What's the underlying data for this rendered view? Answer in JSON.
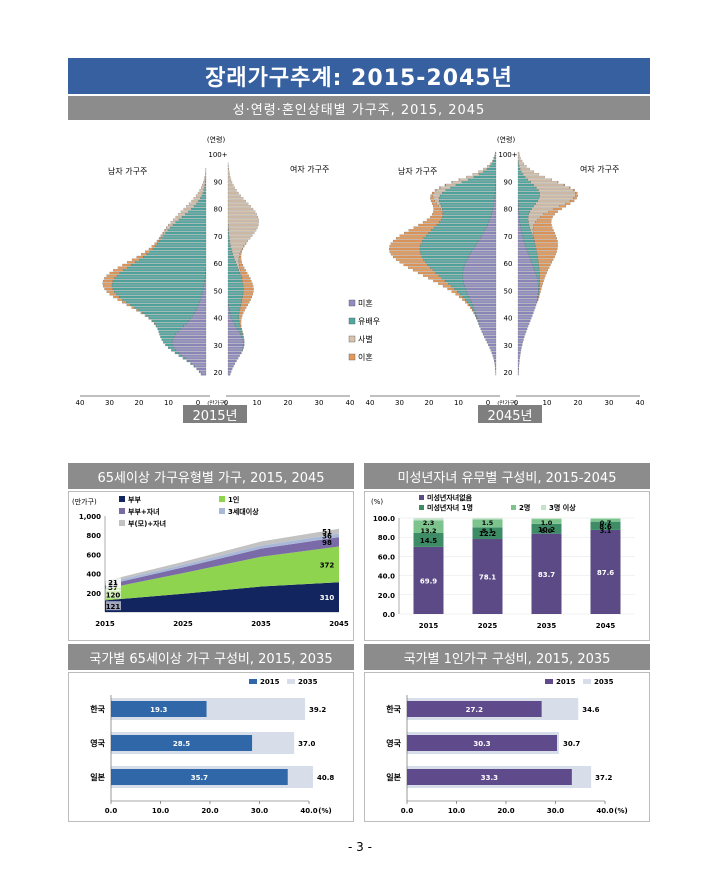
{
  "title": "장래가구추계: 2015-2045년",
  "subtitle": "성·연령·혼인상태별 가구주, 2015, 2045",
  "pyramid": {
    "unit_top": "(연령)",
    "unit_bottom": "(만가구)",
    "male_label": "남자 가구주",
    "female_label": "여자 가구주",
    "age_ticks": [
      "100+",
      "90",
      "80",
      "70",
      "60",
      "50",
      "40",
      "30",
      "20"
    ],
    "x_ticks_left": [
      "40",
      "30",
      "20",
      "10",
      "0"
    ],
    "x_ticks_right": [
      "0",
      "10",
      "20",
      "30",
      "40"
    ],
    "legend": [
      {
        "label": "미혼",
        "color": "#8f8cc2"
      },
      {
        "label": "유배우",
        "color": "#4ea8a0"
      },
      {
        "label": "사별",
        "color": "#d8c3ad"
      },
      {
        "label": "이혼",
        "color": "#e69a5a"
      }
    ],
    "year_2015": "2015년",
    "year_2045": "2045년"
  },
  "chart_data": [
    {
      "type": "area",
      "title": "65세이상 가구유형별 가구, 2015, 2045",
      "ylabel": "(만가구)",
      "x": [
        "2015",
        "2025",
        "2035",
        "2045"
      ],
      "ylim": [
        0,
        1000
      ],
      "yticks": [
        "1,000",
        "800",
        "600",
        "400",
        "200"
      ],
      "series": [
        {
          "name": "부부",
          "color": "#12255e",
          "values": [
            121,
            190,
            265,
            310
          ]
        },
        {
          "name": "1인",
          "color": "#8ed44f",
          "values": [
            120,
            215,
            310,
            372
          ]
        },
        {
          "name": "부부+자녀",
          "color": "#7a6aa8",
          "values": [
            37,
            60,
            85,
            98
          ]
        },
        {
          "name": "3세대이상",
          "color": "#a9b8d8",
          "values": [
            23,
            27,
            32,
            36
          ]
        },
        {
          "name": "부(모)+자녀",
          "color": "#c2c2c2",
          "values": [
            21,
            30,
            42,
            51
          ]
        }
      ],
      "labels_2015": [
        "21",
        "23",
        "37",
        "120",
        "121"
      ],
      "labels_2045": [
        "51",
        "36",
        "98",
        "372",
        "310"
      ]
    },
    {
      "type": "bar",
      "title": "미성년자녀 유무별 구성비, 2015-2045",
      "ylabel": "(%)",
      "categories": [
        "2015",
        "2025",
        "2035",
        "2045"
      ],
      "ylim": [
        0,
        100
      ],
      "yticks": [
        "100.0",
        "80.0",
        "60.0",
        "40.0",
        "20.0",
        "0.0"
      ],
      "series": [
        {
          "name": "미성년자녀없음",
          "color": "#5b4a86",
          "values": [
            69.9,
            78.1,
            83.7,
            87.6
          ]
        },
        {
          "name": "미성년자녀 1명",
          "color": "#3d8c66",
          "values": [
            14.5,
            12.2,
            10.2,
            8.6
          ]
        },
        {
          "name": "2명",
          "color": "#7cc38e",
          "values": [
            13.2,
            8.1,
            5.0,
            3.1
          ]
        },
        {
          "name": "3명 이상",
          "color": "#c3e4c9",
          "values": [
            2.3,
            1.5,
            1.0,
            0.7
          ]
        }
      ],
      "labels": [
        [
          "69.9",
          "14.5",
          "13.2",
          "2.3"
        ],
        [
          "78.1",
          "12.2",
          "8.1",
          "1.5"
        ],
        [
          "83.7",
          "10.2",
          "5.0",
          "1.0"
        ],
        [
          "87.6",
          "8.6",
          "3.1",
          "0.7"
        ]
      ]
    },
    {
      "type": "bar",
      "title": "국가별 65세이상 가구 구성비, 2015, 2035",
      "categories": [
        "한국",
        "영국",
        "일본"
      ],
      "ylim": [
        0,
        40
      ],
      "xticks": [
        "0.0",
        "10.0",
        "20.0",
        "30.0",
        "40.0"
      ],
      "unit": "(%)",
      "series": [
        {
          "name": "2015",
          "color": "#2f67a8",
          "values": [
            19.3,
            28.5,
            35.7
          ]
        },
        {
          "name": "2035",
          "color": "#d7deea",
          "values": [
            39.2,
            37.0,
            40.8
          ]
        }
      ],
      "labels_2015": [
        "19.3",
        "28.5",
        "35.7"
      ],
      "labels_2035": [
        "39.2",
        "37.0",
        "40.8"
      ]
    },
    {
      "type": "bar",
      "title": "국가별 1인가구 구성비, 2015, 2035",
      "categories": [
        "한국",
        "영국",
        "일본"
      ],
      "ylim": [
        0,
        40
      ],
      "xticks": [
        "0.0",
        "10.0",
        "20.0",
        "30.0",
        "40.0"
      ],
      "unit": "(%)",
      "series": [
        {
          "name": "2015",
          "color": "#5f4a8b",
          "values": [
            27.2,
            30.3,
            33.3
          ]
        },
        {
          "name": "2035",
          "color": "#d7deea",
          "values": [
            34.6,
            30.7,
            37.2
          ]
        }
      ],
      "labels_2015": [
        "27.2",
        "30.3",
        "33.3"
      ],
      "labels_2035": [
        "34.6",
        "30.7",
        "37.2"
      ]
    }
  ],
  "page_number": "- 3 -"
}
